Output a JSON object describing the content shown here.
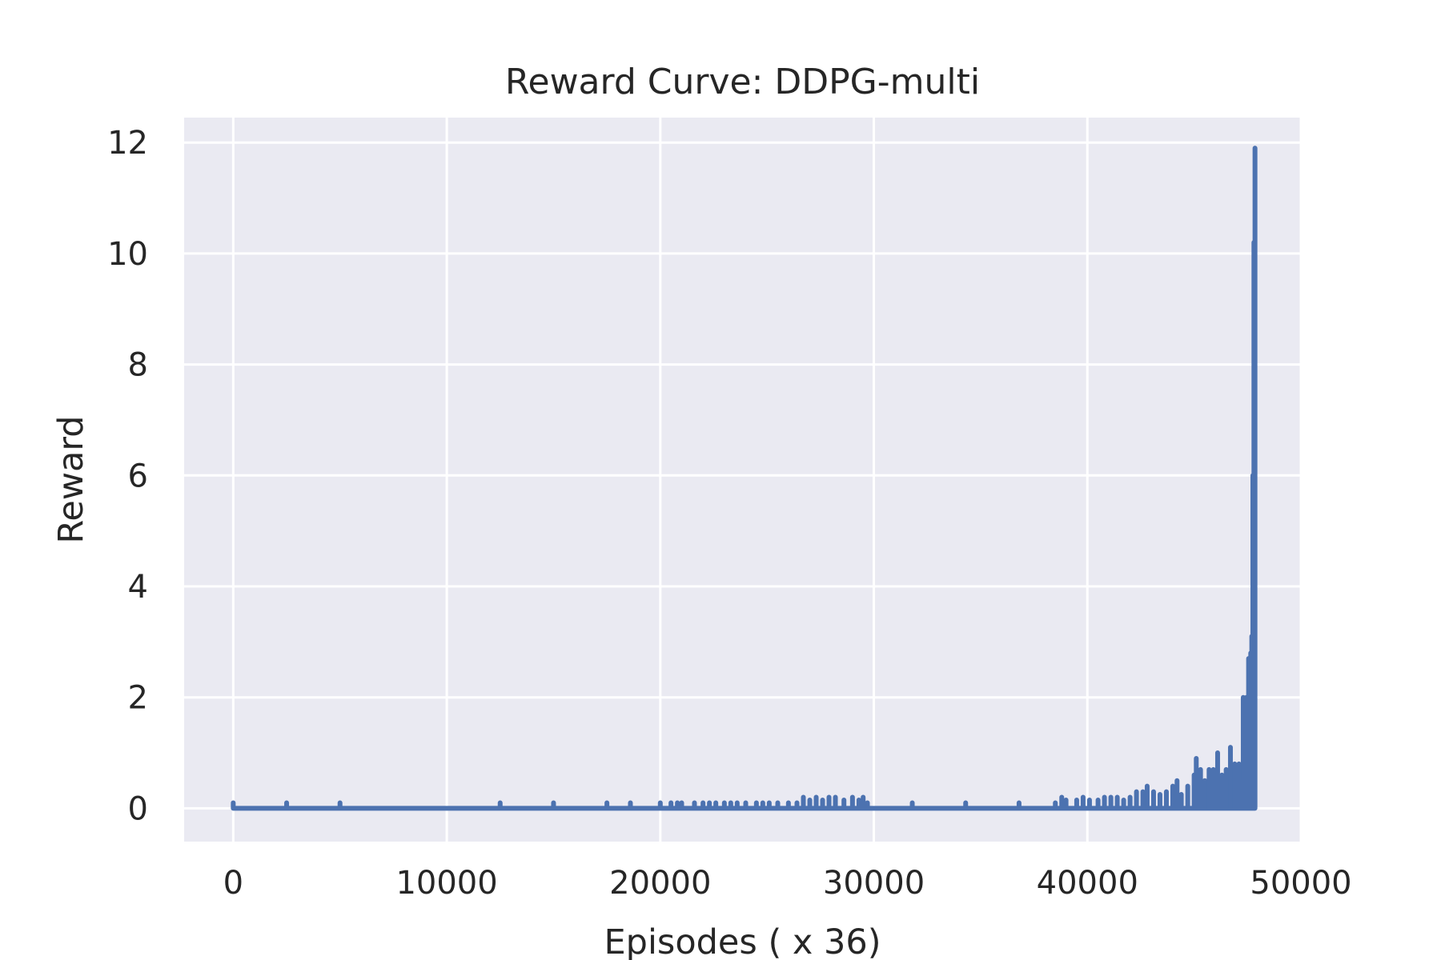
{
  "chart_data": {
    "type": "line",
    "title": "Reward Curve: DDPG-multi",
    "xlabel": "Episodes ( x 36)",
    "ylabel": "Reward",
    "xlim": [
      -2300,
      50000
    ],
    "ylim": [
      -0.6,
      12.45
    ],
    "xticks": [
      0,
      10000,
      20000,
      30000,
      40000,
      50000
    ],
    "yticks": [
      0,
      2,
      4,
      6,
      8,
      10,
      12
    ],
    "grid": true,
    "background_color": "#eaeaf2",
    "line_color": "#4c72b0",
    "series": [
      {
        "name": "",
        "baseline": 0,
        "spikes": [
          [
            0,
            0.1
          ],
          [
            2500,
            0.1
          ],
          [
            5000,
            0.1
          ],
          [
            12500,
            0.1
          ],
          [
            15000,
            0.1
          ],
          [
            17500,
            0.1
          ],
          [
            18600,
            0.1
          ],
          [
            20000,
            0.1
          ],
          [
            20500,
            0.1
          ],
          [
            20800,
            0.1
          ],
          [
            21000,
            0.1
          ],
          [
            21600,
            0.1
          ],
          [
            22000,
            0.1
          ],
          [
            22300,
            0.1
          ],
          [
            22600,
            0.1
          ],
          [
            23000,
            0.1
          ],
          [
            23300,
            0.1
          ],
          [
            23600,
            0.1
          ],
          [
            24000,
            0.1
          ],
          [
            24500,
            0.1
          ],
          [
            24800,
            0.1
          ],
          [
            25100,
            0.1
          ],
          [
            25500,
            0.1
          ],
          [
            26000,
            0.1
          ],
          [
            26400,
            0.1
          ],
          [
            26700,
            0.2
          ],
          [
            27000,
            0.15
          ],
          [
            27300,
            0.2
          ],
          [
            27600,
            0.15
          ],
          [
            27900,
            0.2
          ],
          [
            28200,
            0.2
          ],
          [
            28600,
            0.15
          ],
          [
            29000,
            0.2
          ],
          [
            29300,
            0.15
          ],
          [
            29500,
            0.2
          ],
          [
            29700,
            0.1
          ],
          [
            31800,
            0.1
          ],
          [
            34300,
            0.1
          ],
          [
            36800,
            0.1
          ],
          [
            38500,
            0.1
          ],
          [
            38800,
            0.2
          ],
          [
            39000,
            0.15
          ],
          [
            39500,
            0.15
          ],
          [
            39800,
            0.2
          ],
          [
            40100,
            0.15
          ],
          [
            40500,
            0.15
          ],
          [
            40800,
            0.2
          ],
          [
            41100,
            0.2
          ],
          [
            41400,
            0.2
          ],
          [
            41700,
            0.15
          ],
          [
            42000,
            0.2
          ],
          [
            42300,
            0.3
          ],
          [
            42600,
            0.3
          ],
          [
            42800,
            0.4
          ],
          [
            43100,
            0.3
          ],
          [
            43400,
            0.25
          ],
          [
            43700,
            0.3
          ],
          [
            44000,
            0.4
          ],
          [
            44200,
            0.5
          ],
          [
            44400,
            0.25
          ],
          [
            44700,
            0.4
          ],
          [
            45000,
            0.6
          ],
          [
            45100,
            0.9
          ],
          [
            45300,
            0.7
          ],
          [
            45500,
            0.5
          ],
          [
            45700,
            0.7
          ],
          [
            45900,
            0.7
          ],
          [
            46100,
            1.0
          ],
          [
            46300,
            0.6
          ],
          [
            46500,
            0.7
          ],
          [
            46700,
            1.1
          ],
          [
            46900,
            0.8
          ],
          [
            47000,
            0.6
          ],
          [
            47100,
            0.8
          ],
          [
            47200,
            0.5
          ],
          [
            47300,
            2.0
          ],
          [
            47450,
            2.0
          ],
          [
            47550,
            2.7
          ],
          [
            47650,
            2.8
          ],
          [
            47700,
            3.1
          ],
          [
            47750,
            6.0
          ],
          [
            47800,
            10.2
          ],
          [
            47850,
            11.9
          ]
        ]
      }
    ]
  }
}
